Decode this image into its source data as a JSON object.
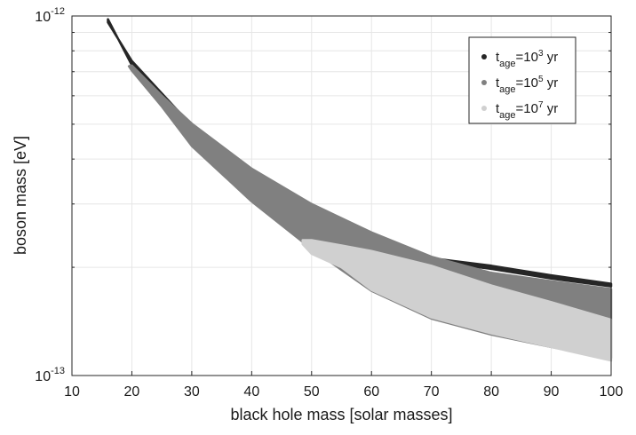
{
  "chart_data": {
    "type": "area",
    "title": "",
    "xlabel": "black hole mass [solar masses]",
    "ylabel": "boson mass [eV]",
    "xlim": [
      10,
      100
    ],
    "ylim": [
      1e-13,
      1e-12
    ],
    "yscale": "log",
    "grid": true,
    "xticks": [
      10,
      20,
      30,
      40,
      50,
      60,
      70,
      80,
      90,
      100
    ],
    "yticks": [
      {
        "value": 1e-13,
        "base": "10",
        "exp": "-13"
      },
      {
        "value": 1e-12,
        "base": "10",
        "exp": "-12"
      }
    ],
    "legend_position": "top-right",
    "series": [
      {
        "name": "t_age=10^3 yr",
        "legend": {
          "t": "t",
          "sub": "age",
          "eq": "=10",
          "sup": "3",
          "unit": " yr"
        },
        "color": "#262626",
        "upper": [
          [
            16,
            9.8e-13
          ],
          [
            20,
            7.3e-13
          ],
          [
            30,
            4.85e-13
          ],
          [
            40,
            3.62e-13
          ],
          [
            50,
            2.9e-13
          ],
          [
            60,
            2.42e-13
          ],
          [
            70,
            2.08e-13
          ],
          [
            80,
            1.98e-13
          ],
          [
            90,
            1.86e-13
          ],
          [
            100,
            1.77e-13
          ]
        ],
        "lower": [
          [
            16,
            9.6e-13
          ],
          [
            20,
            7.5e-13
          ],
          [
            30,
            4.95e-13
          ],
          [
            40,
            3.72e-13
          ],
          [
            50,
            2.98e-13
          ],
          [
            60,
            2.48e-13
          ],
          [
            70,
            2.12e-13
          ],
          [
            80,
            2.02e-13
          ],
          [
            90,
            1.9e-13
          ],
          [
            100,
            1.8e-13
          ]
        ]
      },
      {
        "name": "t_age=10^5 yr",
        "legend": {
          "t": "t",
          "sub": "age",
          "eq": "=10",
          "sup": "5",
          "unit": " yr"
        },
        "color": "#808080",
        "upper": [
          [
            19.5,
            7.25e-13
          ],
          [
            20,
            7.28e-13
          ],
          [
            25,
            6e-13
          ],
          [
            30,
            5.02e-13
          ],
          [
            40,
            3.76e-13
          ],
          [
            50,
            3e-13
          ],
          [
            60,
            2.5e-13
          ],
          [
            70,
            2.14e-13
          ],
          [
            80,
            1.93e-13
          ],
          [
            90,
            1.83e-13
          ],
          [
            100,
            1.74e-13
          ]
        ],
        "lower": [
          [
            19.5,
            7.25e-13
          ],
          [
            20,
            7.05e-13
          ],
          [
            25,
            5.6e-13
          ],
          [
            30,
            4.35e-13
          ],
          [
            40,
            3.05e-13
          ],
          [
            50,
            2.25e-13
          ],
          [
            60,
            1.72e-13
          ],
          [
            70,
            1.44e-13
          ],
          [
            80,
            1.3e-13
          ],
          [
            90,
            1.2e-13
          ],
          [
            100,
            1.12e-13
          ]
        ]
      },
      {
        "name": "t_age=10^7 yr",
        "legend": {
          "t": "t",
          "sub": "age",
          "eq": "=10",
          "sup": "7",
          "unit": " yr"
        },
        "color": "#d0d0d0",
        "upper": [
          [
            48.5,
            2.38e-13
          ],
          [
            50,
            2.38e-13
          ],
          [
            55,
            2.3e-13
          ],
          [
            60,
            2.22e-13
          ],
          [
            70,
            2.02e-13
          ],
          [
            80,
            1.78e-13
          ],
          [
            90,
            1.6e-13
          ],
          [
            100,
            1.43e-13
          ]
        ],
        "lower": [
          [
            48.5,
            2.32e-13
          ],
          [
            50,
            2.18e-13
          ],
          [
            55,
            2e-13
          ],
          [
            60,
            1.73e-13
          ],
          [
            70,
            1.45e-13
          ],
          [
            80,
            1.31e-13
          ],
          [
            90,
            1.2e-13
          ],
          [
            100,
            1.1e-13
          ]
        ]
      }
    ]
  }
}
